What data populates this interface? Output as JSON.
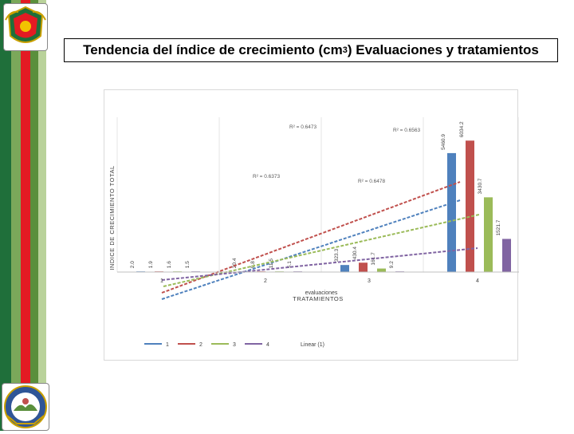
{
  "slide": {
    "title_prefix": "Tendencia del índice de crecimiento (cm",
    "title_sup": "3",
    "title_suffix": ") Evaluaciones y tratamientos"
  },
  "theme": {
    "stripe_colors": [
      "#1f6f3a",
      "#e31b23",
      "#7ba85a",
      "#b9d29a"
    ],
    "series_colors": [
      "#4f81bd",
      "#c0504d",
      "#9bbb59",
      "#8064a2"
    ]
  },
  "chart_data": {
    "type": "bar",
    "categories": [
      "1",
      "2",
      "3",
      "4"
    ],
    "ylabel": "INDICE DE CRECIMIENTO TOTAL",
    "xlabel_top": "evaluaciones",
    "xlabel": "TRATAMIENTOS",
    "series": [
      {
        "name": "1",
        "values": [
          2.0,
          20.4,
          323.3,
          5460.9
        ],
        "labels": [
          "2.0",
          "20.4",
          "323.3",
          "5460.9"
        ]
      },
      {
        "name": "2",
        "values": [
          1.9,
          9.8,
          430.4,
          6034.2
        ],
        "labels": [
          "1.9",
          "9.8",
          "430.4",
          "6034.2"
        ]
      },
      {
        "name": "3",
        "values": [
          1.6,
          11.5,
          161.7,
          3430.7
        ],
        "labels": [
          "1.6",
          "11.5",
          "161.7",
          "3430.7"
        ]
      },
      {
        "name": "4",
        "values": [
          1.5,
          5.1,
          9.2,
          1521.7
        ],
        "labels": [
          "1.5",
          "5.1",
          "9.2",
          "1521.7"
        ]
      }
    ],
    "trendlines": [
      {
        "series": "1",
        "r2_label": "R² = 0.6563"
      },
      {
        "series": "2",
        "r2_label": "R² = 0.6473"
      },
      {
        "series": "3",
        "r2_label": "R² = 0.6373"
      },
      {
        "series": "4",
        "r2_label": "R² = 0.6478"
      }
    ],
    "legend": [
      "1",
      "2",
      "3",
      "4",
      "Linear (1)"
    ],
    "legend_position": "bottom"
  }
}
